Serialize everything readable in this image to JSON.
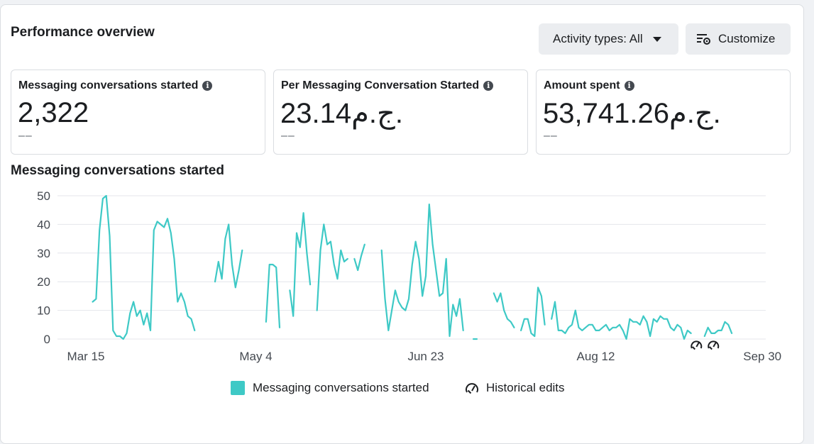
{
  "header": {
    "title": "Performance overview",
    "activity_button": "Activity types: All",
    "customize_button": "Customize"
  },
  "metrics": [
    {
      "label": "Messaging conversations started",
      "value": "2,322",
      "delta": "––"
    },
    {
      "label": "Per Messaging Conversation Started",
      "value": "23.14ج.م.",
      "delta": "––"
    },
    {
      "label": "Amount spent",
      "value": "53,741.26ج.م.",
      "delta": "––"
    }
  ],
  "legend": {
    "series": "Messaging conversations started",
    "edits": "Historical edits"
  },
  "colors": {
    "series": "#3ec9c6",
    "grid": "#e4e6eb",
    "text": "#444950"
  },
  "chart_data": {
    "type": "line",
    "title": "Messaging conversations started",
    "xlabel": "",
    "ylabel": "",
    "ylim": [
      0,
      50
    ],
    "yticks": [
      0,
      10,
      20,
      30,
      40,
      50
    ],
    "x_range": [
      -3,
      196
    ],
    "xticks": [
      {
        "day": 0,
        "label": "Mar 15"
      },
      {
        "day": 50,
        "label": "May 4"
      },
      {
        "day": 100,
        "label": "Jun 23"
      },
      {
        "day": 150,
        "label": "Aug 12"
      },
      {
        "day": 199,
        "label": "Sep 30"
      }
    ],
    "historical_edits_days": [
      182,
      187
    ],
    "series": [
      {
        "name": "Messaging conversations started",
        "segments": [
          [
            [
              2,
              13
            ],
            [
              3,
              14
            ],
            [
              4,
              38
            ],
            [
              5,
              49
            ],
            [
              6,
              50
            ],
            [
              7,
              36
            ],
            [
              8,
              3
            ],
            [
              9,
              1
            ],
            [
              10,
              1
            ],
            [
              11,
              0
            ],
            [
              12,
              2
            ],
            [
              13,
              9
            ],
            [
              14,
              13
            ],
            [
              15,
              8
            ],
            [
              16,
              10
            ],
            [
              17,
              5
            ],
            [
              18,
              9
            ],
            [
              19,
              3
            ],
            [
              20,
              38
            ],
            [
              21,
              41
            ],
            [
              22,
              40
            ],
            [
              23,
              39
            ],
            [
              24,
              42
            ],
            [
              25,
              37
            ],
            [
              26,
              28
            ],
            [
              27,
              13
            ],
            [
              28,
              16
            ],
            [
              29,
              13
            ],
            [
              30,
              8
            ],
            [
              31,
              7
            ],
            [
              32,
              3
            ]
          ],
          [
            [
              38,
              20
            ],
            [
              39,
              27
            ],
            [
              40,
              21
            ],
            [
              41,
              35
            ],
            [
              42,
              40
            ],
            [
              43,
              26
            ],
            [
              44,
              18
            ],
            [
              45,
              24
            ],
            [
              46,
              31
            ]
          ],
          [
            [
              53,
              6
            ],
            [
              54,
              26
            ],
            [
              55,
              26
            ],
            [
              56,
              25
            ],
            [
              57,
              4
            ]
          ],
          [
            [
              60,
              17
            ],
            [
              61,
              8
            ],
            [
              62,
              37
            ],
            [
              63,
              32
            ],
            [
              64,
              44
            ],
            [
              65,
              30
            ],
            [
              66,
              19
            ]
          ],
          [
            [
              68,
              10
            ],
            [
              69,
              31
            ],
            [
              70,
              40
            ],
            [
              71,
              33
            ],
            [
              72,
              34
            ],
            [
              73,
              26
            ],
            [
              74,
              21
            ],
            [
              75,
              31
            ],
            [
              76,
              27
            ],
            [
              77,
              28
            ]
          ],
          [
            [
              79,
              28
            ],
            [
              80,
              24
            ],
            [
              81,
              29
            ],
            [
              82,
              33
            ]
          ],
          [
            [
              87,
              31
            ],
            [
              88,
              14
            ],
            [
              89,
              3
            ],
            [
              90,
              10
            ],
            [
              91,
              17
            ],
            [
              92,
              13
            ],
            [
              93,
              11
            ],
            [
              94,
              10
            ],
            [
              95,
              14
            ],
            [
              96,
              26
            ],
            [
              97,
              34
            ],
            [
              98,
              28
            ],
            [
              99,
              15
            ],
            [
              100,
              22
            ],
            [
              101,
              47
            ],
            [
              102,
              33
            ],
            [
              103,
              24
            ],
            [
              104,
              15
            ],
            [
              105,
              16
            ],
            [
              106,
              28
            ],
            [
              107,
              1
            ],
            [
              108,
              12
            ],
            [
              109,
              8
            ],
            [
              110,
              14
            ],
            [
              111,
              3
            ]
          ],
          [
            [
              114,
              0
            ],
            [
              115,
              0
            ]
          ],
          [
            [
              120,
              16
            ],
            [
              121,
              13
            ],
            [
              122,
              16
            ],
            [
              123,
              10
            ],
            [
              124,
              7
            ],
            [
              125,
              6
            ],
            [
              126,
              4
            ]
          ],
          [
            [
              128,
              3
            ],
            [
              129,
              7
            ],
            [
              130,
              7
            ],
            [
              131,
              2
            ],
            [
              132,
              1
            ],
            [
              133,
              18
            ],
            [
              134,
              15
            ],
            [
              135,
              5
            ]
          ],
          [
            [
              137,
              7
            ],
            [
              138,
              13
            ],
            [
              139,
              3
            ],
            [
              140,
              3
            ],
            [
              141,
              2
            ],
            [
              142,
              4
            ],
            [
              143,
              5
            ],
            [
              144,
              10
            ],
            [
              145,
              4
            ],
            [
              146,
              3
            ],
            [
              147,
              4
            ],
            [
              148,
              5
            ],
            [
              149,
              5
            ],
            [
              150,
              3
            ],
            [
              151,
              3
            ],
            [
              152,
              4
            ],
            [
              153,
              5
            ],
            [
              154,
              3
            ],
            [
              155,
              4
            ],
            [
              156,
              4
            ],
            [
              157,
              5
            ],
            [
              158,
              3
            ],
            [
              159,
              0
            ],
            [
              160,
              7
            ],
            [
              161,
              6
            ],
            [
              162,
              6
            ],
            [
              163,
              5
            ],
            [
              164,
              8
            ],
            [
              165,
              6
            ],
            [
              166,
              1
            ],
            [
              167,
              7
            ],
            [
              168,
              6
            ],
            [
              169,
              8
            ],
            [
              170,
              7
            ],
            [
              171,
              7
            ],
            [
              172,
              4
            ],
            [
              173,
              3
            ],
            [
              174,
              5
            ],
            [
              175,
              4
            ],
            [
              176,
              0
            ],
            [
              177,
              3
            ],
            [
              178,
              2
            ]
          ],
          [
            [
              182,
              1
            ],
            [
              183,
              4
            ],
            [
              184,
              2
            ],
            [
              185,
              2
            ],
            [
              186,
              3
            ],
            [
              187,
              3
            ],
            [
              188,
              6
            ],
            [
              189,
              5
            ],
            [
              190,
              2
            ]
          ]
        ]
      }
    ]
  }
}
